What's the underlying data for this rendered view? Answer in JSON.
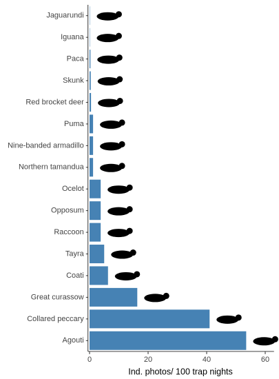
{
  "chart_data": {
    "type": "bar",
    "orientation": "horizontal",
    "x_label": "Ind. photos/ 100 trap nights",
    "categories": [
      "Jaguarundi",
      "Iguana",
      "Paca",
      "Skunk",
      "Red brocket deer",
      "Puma",
      "Nine-banded armadillo",
      "Northern tamandua",
      "Ocelot",
      "Opposum",
      "Raccoon",
      "Tayra",
      "Coati",
      "Great curassow",
      "Collared peccary",
      "Agouti"
    ],
    "values": [
      0.1,
      0.1,
      0.3,
      0.4,
      0.5,
      1.2,
      1.2,
      1.2,
      3.8,
      3.8,
      3.8,
      5,
      6.3,
      16.3,
      41,
      53.5
    ],
    "color": "#4682b4",
    "xlim": [
      -1,
      63
    ],
    "xticks": [
      0,
      20,
      40,
      60
    ],
    "grid": false
  }
}
